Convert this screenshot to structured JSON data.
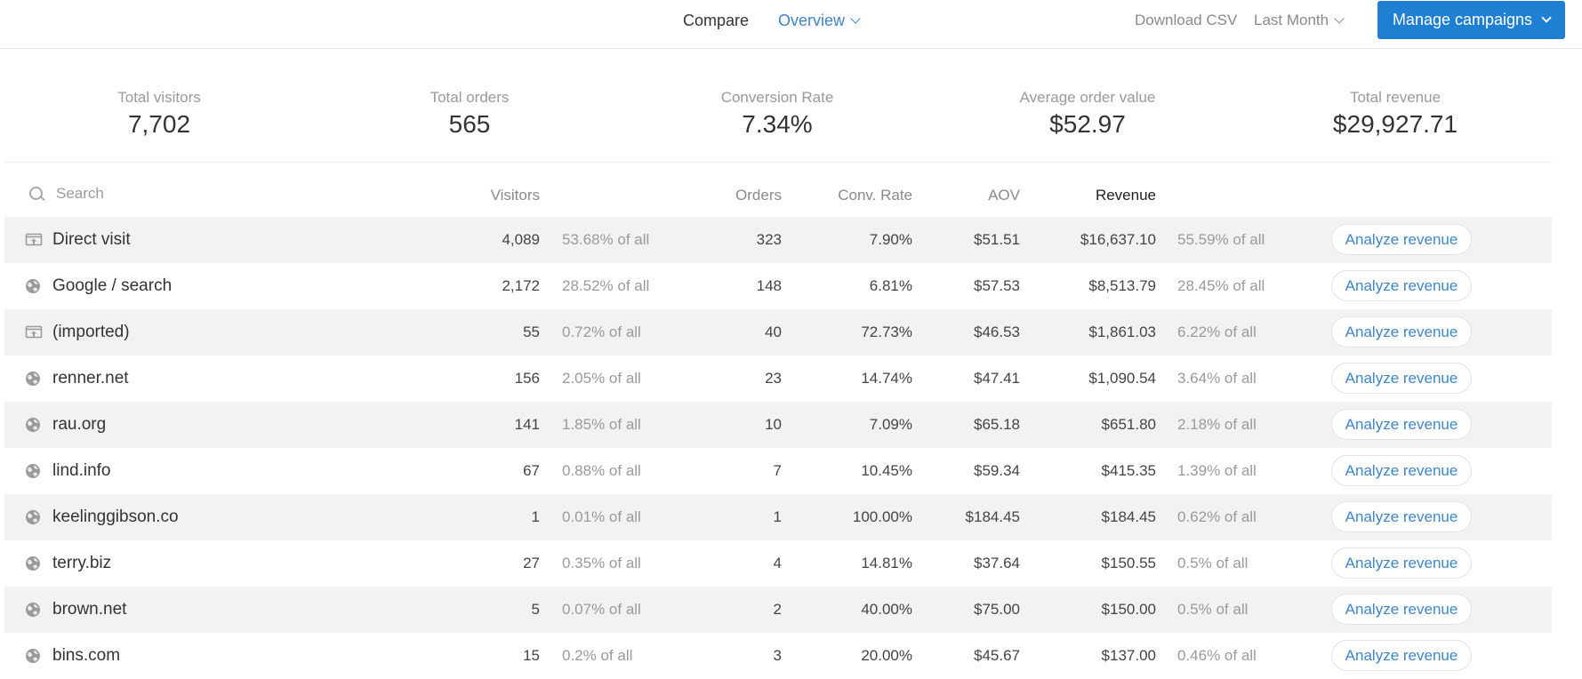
{
  "topbar": {
    "compare_label": "Compare",
    "overview_label": "Overview",
    "download_label": "Download CSV",
    "period_label": "Last Month",
    "manage_label": "Manage campaigns"
  },
  "stats": [
    {
      "label": "Total visitors",
      "value": "7,702"
    },
    {
      "label": "Total orders",
      "value": "565"
    },
    {
      "label": "Conversion Rate",
      "value": "7.34%"
    },
    {
      "label": "Average order value",
      "value": "$52.97"
    },
    {
      "label": "Total revenue",
      "value": "$29,927.71"
    }
  ],
  "table": {
    "search_placeholder": "Search",
    "columns": {
      "visitors": "Visitors",
      "orders": "Orders",
      "conv_rate": "Conv. Rate",
      "aov": "AOV",
      "revenue": "Revenue"
    },
    "action_label": "Analyze revenue",
    "rows": [
      {
        "icon": "direct-visit-icon",
        "source": "Direct visit",
        "visitors": "4,089",
        "visitors_pct": "53.68% of all",
        "orders": "323",
        "conv_rate": "7.90%",
        "aov": "$51.51",
        "revenue": "$16,637.10",
        "revenue_pct": "55.59% of all"
      },
      {
        "icon": "globe-icon",
        "source": "Google / search",
        "visitors": "2,172",
        "visitors_pct": "28.52% of all",
        "orders": "148",
        "conv_rate": "6.81%",
        "aov": "$57.53",
        "revenue": "$8,513.79",
        "revenue_pct": "28.45% of all"
      },
      {
        "icon": "direct-visit-icon",
        "source": "(imported)",
        "visitors": "55",
        "visitors_pct": "0.72% of all",
        "orders": "40",
        "conv_rate": "72.73%",
        "aov": "$46.53",
        "revenue": "$1,861.03",
        "revenue_pct": "6.22% of all"
      },
      {
        "icon": "globe-icon",
        "source": "renner.net",
        "visitors": "156",
        "visitors_pct": "2.05% of all",
        "orders": "23",
        "conv_rate": "14.74%",
        "aov": "$47.41",
        "revenue": "$1,090.54",
        "revenue_pct": "3.64% of all"
      },
      {
        "icon": "globe-icon",
        "source": "rau.org",
        "visitors": "141",
        "visitors_pct": "1.85% of all",
        "orders": "10",
        "conv_rate": "7.09%",
        "aov": "$65.18",
        "revenue": "$651.80",
        "revenue_pct": "2.18% of all"
      },
      {
        "icon": "globe-icon",
        "source": "lind.info",
        "visitors": "67",
        "visitors_pct": "0.88% of all",
        "orders": "7",
        "conv_rate": "10.45%",
        "aov": "$59.34",
        "revenue": "$415.35",
        "revenue_pct": "1.39% of all"
      },
      {
        "icon": "globe-icon",
        "source": "keelinggibson.co",
        "visitors": "1",
        "visitors_pct": "0.01% of all",
        "orders": "1",
        "conv_rate": "100.00%",
        "aov": "$184.45",
        "revenue": "$184.45",
        "revenue_pct": "0.62% of all"
      },
      {
        "icon": "globe-icon",
        "source": "terry.biz",
        "visitors": "27",
        "visitors_pct": "0.35% of all",
        "orders": "4",
        "conv_rate": "14.81%",
        "aov": "$37.64",
        "revenue": "$150.55",
        "revenue_pct": "0.5% of all"
      },
      {
        "icon": "globe-icon",
        "source": "brown.net",
        "visitors": "5",
        "visitors_pct": "0.07% of all",
        "orders": "2",
        "conv_rate": "40.00%",
        "aov": "$75.00",
        "revenue": "$150.00",
        "revenue_pct": "0.5% of all"
      },
      {
        "icon": "globe-icon",
        "source": "bins.com",
        "visitors": "15",
        "visitors_pct": "0.2% of all",
        "orders": "3",
        "conv_rate": "20.00%",
        "aov": "$45.67",
        "revenue": "$137.00",
        "revenue_pct": "0.46% of all"
      }
    ]
  },
  "colors": {
    "accent": "#1f7fd3",
    "link": "#3f86c7",
    "row_stripe": "#f2f2f2",
    "muted_text": "#9a9a9a"
  }
}
